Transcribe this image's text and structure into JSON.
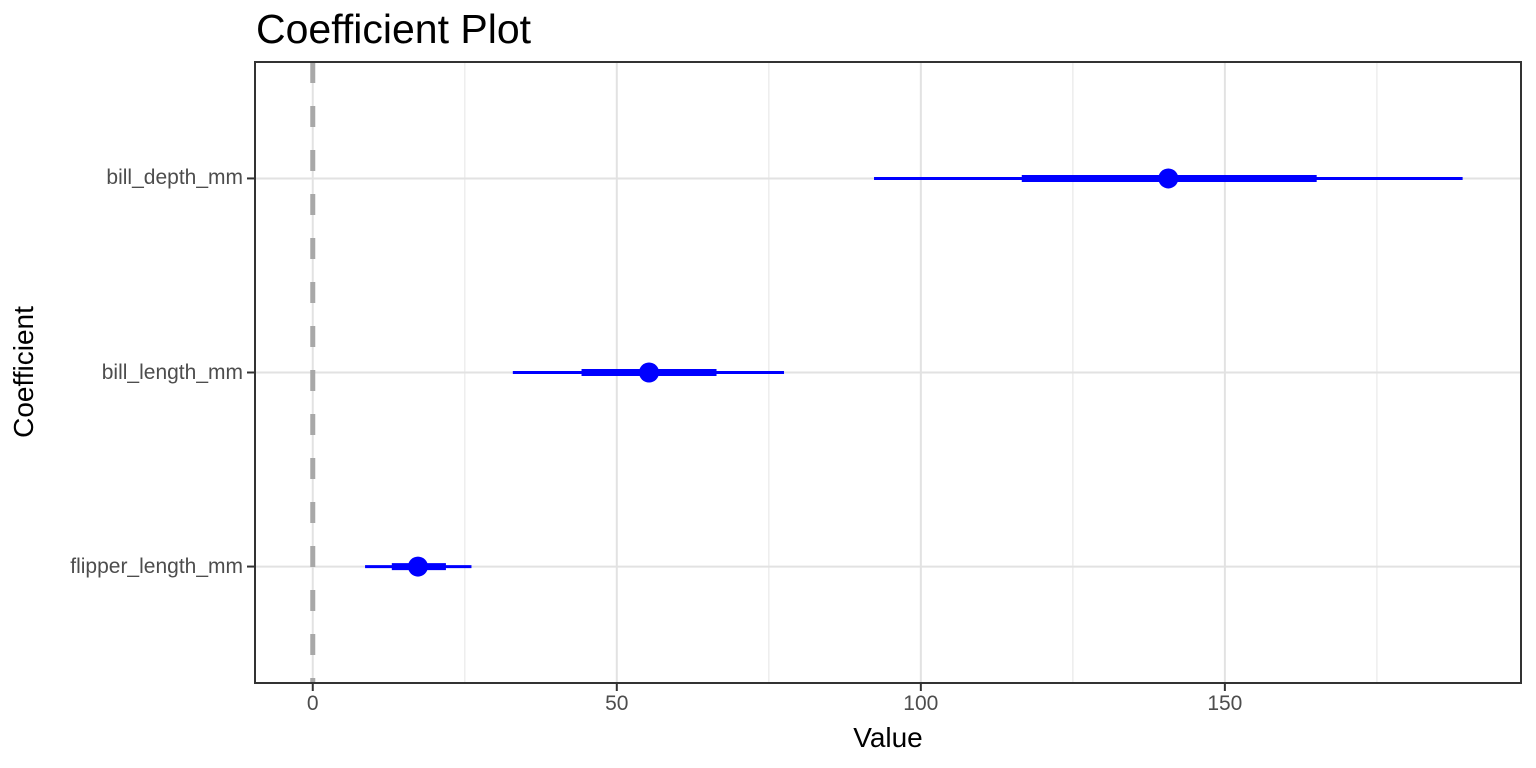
{
  "chart_data": {
    "type": "scatter",
    "subtype": "coefficient-pointrange",
    "title": "Coefficient Plot",
    "xlabel": "Value",
    "ylabel": "Coefficient",
    "xlim": [
      -9.5,
      198.7
    ],
    "x_ticks_major": [
      0,
      50,
      100,
      150
    ],
    "x_tick_labels": [
      "0",
      "50",
      "100",
      "150"
    ],
    "x_ticks_minor": [
      25,
      75,
      125,
      175
    ],
    "categories_top_to_bottom": [
      "bill_depth_mm",
      "bill_length_mm",
      "flipper_length_mm"
    ],
    "series": [
      {
        "name": "bill_depth_mm",
        "estimate": 140.7,
        "inner_interval": [
          116.6,
          165.1
        ],
        "outer_interval": [
          92.3,
          189.1
        ]
      },
      {
        "name": "bill_length_mm",
        "estimate": 55.3,
        "inner_interval": [
          44.2,
          66.4
        ],
        "outer_interval": [
          32.9,
          77.5
        ]
      },
      {
        "name": "flipper_length_mm",
        "estimate": 17.3,
        "inner_interval": [
          13.0,
          21.9
        ],
        "outer_interval": [
          8.6,
          26.1
        ]
      }
    ],
    "reference_line_x": 0,
    "legend": "none",
    "grid": {
      "vertical": "major+minor",
      "horizontal": "major-rows-only"
    },
    "colors": {
      "point_and_ranges": "#0000FF",
      "reference_line": "#A8A8A8",
      "grid_major": "#E2E2E2",
      "grid_minor": "#EDEDED",
      "panel_border": "#333333",
      "axis_tick": "#333333",
      "tick_label_text": "#4D4D4D",
      "title_text": "#000000",
      "background": "#FFFFFF"
    }
  }
}
